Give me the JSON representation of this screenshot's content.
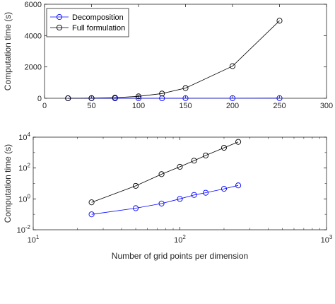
{
  "chart_data": [
    {
      "type": "line",
      "scale": "linear",
      "x": [
        25,
        50,
        75,
        100,
        125,
        150,
        200,
        250
      ],
      "series": [
        {
          "name": "Decomposition",
          "color": "#0000ff",
          "marker": "circle",
          "values": [
            0.1,
            0.25,
            0.5,
            1,
            1.8,
            2.5,
            4.5,
            7.5
          ]
        },
        {
          "name": "Full formulation",
          "color": "#000000",
          "marker": "circle",
          "values": [
            0.6,
            7,
            40,
            120,
            300,
            650,
            2050,
            4950
          ]
        }
      ],
      "xlim": [
        0,
        300
      ],
      "ylim": [
        0,
        6000
      ],
      "xticks": [
        0,
        50,
        100,
        150,
        200,
        250,
        300
      ],
      "yticks": [
        0,
        2000,
        4000,
        6000
      ],
      "xtick_labels": [
        "0",
        "50",
        "100",
        "150",
        "200",
        "250",
        "300"
      ],
      "ytick_labels": [
        "0",
        "2000",
        "4000",
        "6000"
      ],
      "xlabel": "",
      "ylabel": "Computation time (s)",
      "legend": {
        "placement": "top-left",
        "entries": [
          "Decomposition",
          "Full formulation"
        ]
      },
      "grid": false
    },
    {
      "type": "line",
      "scale": "log",
      "x": [
        25,
        50,
        75,
        100,
        125,
        150,
        200,
        250
      ],
      "series": [
        {
          "name": "Decomposition",
          "color": "#0000ff",
          "marker": "circle",
          "values": [
            0.1,
            0.25,
            0.5,
            1,
            1.8,
            2.5,
            4.5,
            7.5
          ]
        },
        {
          "name": "Full formulation",
          "color": "#000000",
          "marker": "circle",
          "values": [
            0.6,
            7,
            40,
            120,
            300,
            650,
            2050,
            4950
          ]
        }
      ],
      "xlim": [
        10,
        1000
      ],
      "ylim": [
        0.01,
        10000
      ],
      "xticks": [
        10,
        100,
        1000
      ],
      "yticks": [
        0.01,
        1,
        100,
        10000
      ],
      "xtick_labels": [
        {
          "base": "10",
          "exp": "1"
        },
        {
          "base": "10",
          "exp": "2"
        },
        {
          "base": "10",
          "exp": "3"
        }
      ],
      "ytick_labels": [
        {
          "base": "10",
          "exp": "-2"
        },
        {
          "base": "10",
          "exp": "0"
        },
        {
          "base": "10",
          "exp": "2"
        },
        {
          "base": "10",
          "exp": "4"
        }
      ],
      "xlabel": "Number of grid points per dimension",
      "ylabel": "Computation time (s)",
      "grid": false
    }
  ]
}
